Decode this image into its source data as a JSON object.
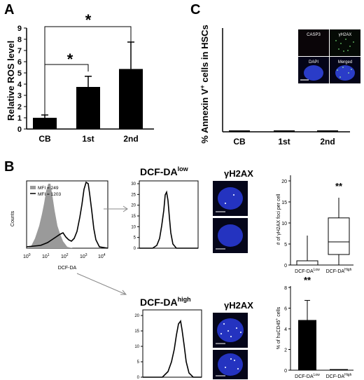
{
  "panels": {
    "A": "A",
    "B": "B",
    "C": "C"
  },
  "chart_data": [
    {
      "id": "A",
      "type": "bar",
      "ylabel": "Relative ROS level",
      "categories": [
        "CB",
        "1st",
        "2nd"
      ],
      "values": [
        1.0,
        3.75,
        5.35
      ],
      "errors": [
        0.25,
        0.95,
        2.4
      ],
      "ylim": [
        0,
        9
      ],
      "yticks": [
        "0",
        "1",
        "2",
        "3",
        "4",
        "5",
        "6",
        "7",
        "8",
        "9"
      ],
      "significance": [
        "*",
        "*"
      ]
    },
    {
      "id": "C",
      "type": "bar",
      "ylabel_parts": [
        "% Annexin V",
        "+",
        " cells in HSCs"
      ],
      "categories": [
        "CB",
        "1st",
        "2nd"
      ],
      "values": [
        0.3,
        0.3,
        0.3
      ],
      "inset_labels": [
        "CASP3",
        "γH2AX",
        "DAPI",
        "Merged"
      ]
    },
    {
      "id": "B-hist-main",
      "type": "histogram",
      "xlabel": "DCF-DA",
      "ylabel": "Counts",
      "legend": [
        "MFI = 249",
        "MFI = 1203"
      ],
      "xticks": [
        "10",
        "1",
        "10",
        "2",
        "10",
        "3",
        "10",
        "4",
        "10",
        "0"
      ]
    },
    {
      "id": "B-hist-low",
      "type": "histogram",
      "title_parts": [
        "DCF-DA",
        "low"
      ],
      "yticks": [
        "0",
        "5",
        "10",
        "15",
        "20",
        "25",
        "30"
      ]
    },
    {
      "id": "B-hist-high",
      "type": "histogram",
      "title_parts": [
        "DCF-DA",
        "high"
      ],
      "yticks": [
        "0",
        "5",
        "10",
        "15",
        "20"
      ]
    },
    {
      "id": "B-box",
      "type": "box",
      "ylabel_parts": [
        "# of ",
        "γ",
        "H2AX foci per cell"
      ],
      "categories": [
        [
          "DCF-DA",
          "Low"
        ],
        [
          "DCF-DA",
          "High"
        ]
      ],
      "yticks": [
        "0",
        "5",
        "10",
        "15",
        "20"
      ],
      "ylim": [
        0,
        20
      ],
      "boxes": [
        {
          "min": 0,
          "q1": 0,
          "median": 0,
          "q3": 1,
          "max": 7
        },
        {
          "min": 0,
          "q1": 2.5,
          "median": 5.5,
          "q3": 11.2,
          "max": 16
        }
      ],
      "significance": "**"
    },
    {
      "id": "B-bar",
      "type": "bar",
      "ylabel_parts": [
        "% of huCD45",
        "+",
        " cells"
      ],
      "categories": [
        [
          "DCF-DA",
          "Low"
        ],
        [
          "DCF-DA",
          "High"
        ]
      ],
      "values": [
        4.85,
        0.1
      ],
      "errors": [
        1.9,
        0
      ],
      "ylim": [
        0,
        8
      ],
      "yticks": [
        "0",
        "2",
        "4",
        "6",
        "8"
      ],
      "significance": "**"
    }
  ],
  "gamma_labels": [
    "γH2AX",
    "γH2AX"
  ]
}
